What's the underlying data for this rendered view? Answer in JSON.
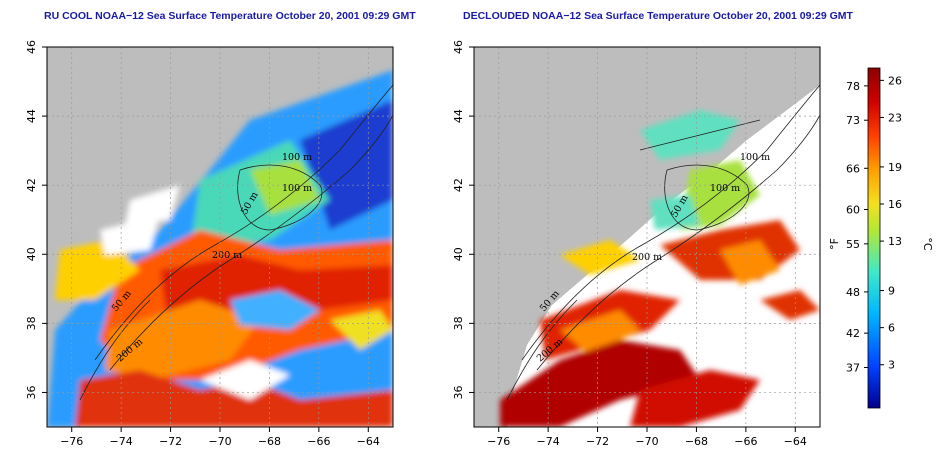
{
  "titles": {
    "left": "RU COOL NOAA−12 Sea Surface Temperature October 20, 2001 09:29 GMT",
    "right": "DECLOUDED NOAA−12 Sea Surface Temperature October 20, 2001 09:29 GMT"
  },
  "map_axes": {
    "longitude_ticks": [
      "−76",
      "−74",
      "−72",
      "−70",
      "−68",
      "−66",
      "−64"
    ],
    "latitude_ticks": [
      "46",
      "44",
      "42",
      "40",
      "38",
      "36"
    ],
    "longitude_range": [
      -77,
      -63
    ],
    "latitude_range": [
      35,
      46
    ],
    "grid": "dotted"
  },
  "contour_labels": {
    "left": [
      "100 m",
      "100 m",
      "50 m",
      "200 m",
      "50 m",
      "200 m"
    ],
    "right": [
      "100 m",
      "100 m",
      "50 m",
      "200 m",
      "50 m",
      "200 m"
    ]
  },
  "colorbar": {
    "fahrenheit_label": "°F",
    "celsius_label": "°C",
    "fahrenheit_ticks": [
      "78",
      "73",
      "66",
      "60",
      "55",
      "48",
      "42",
      "37"
    ],
    "celsius_ticks": [
      "26",
      "23",
      "19",
      "16",
      "13",
      "9",
      "6",
      "3"
    ],
    "colors": [
      "#0000a0",
      "#0050ff",
      "#00b4ff",
      "#30e0c0",
      "#a0e040",
      "#f0e020",
      "#ffa000",
      "#ff3000",
      "#c00000",
      "#900000"
    ]
  },
  "colors": {
    "land": "#bdbdbd",
    "title": "#1a1aa8"
  }
}
